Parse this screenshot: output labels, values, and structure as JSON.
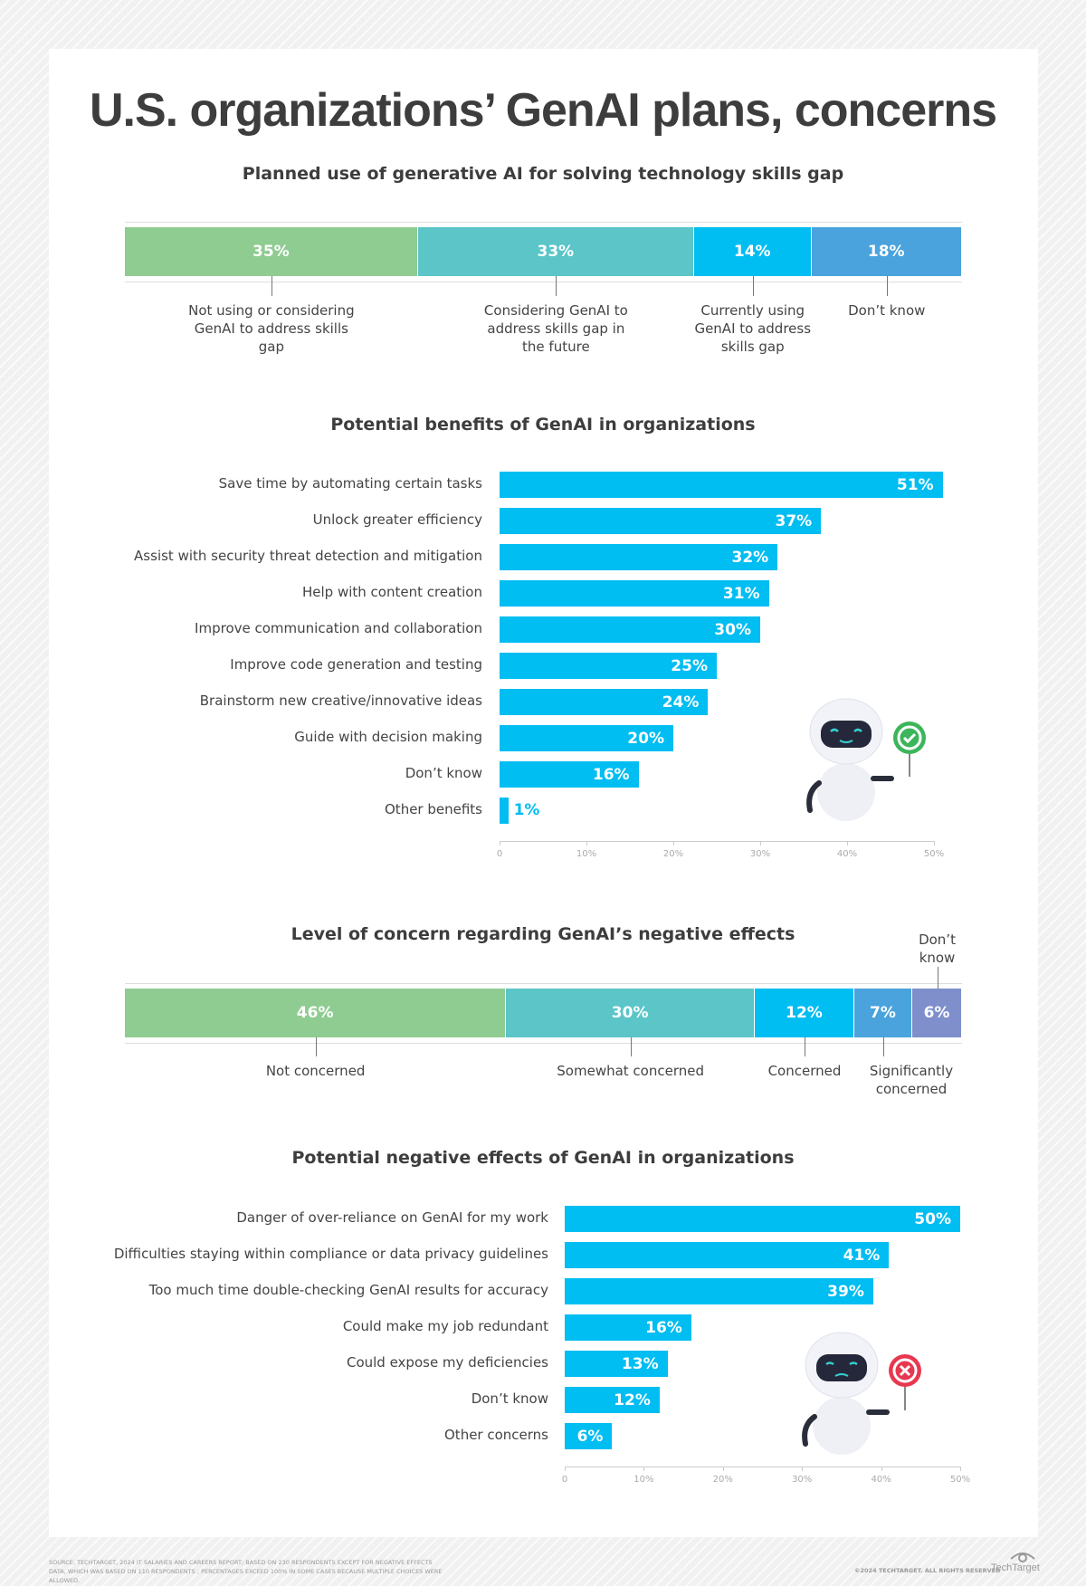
{
  "title": "U.S. organizations’ GenAI plans, concerns",
  "chart_data": [
    {
      "type": "bar",
      "stacked": true,
      "title": "Planned use of generative AI for solving technology skills gap",
      "categories": [
        "Not using or considering GenAI to address skills gap",
        "Considering GenAI to address skills gap in the future",
        "Currently using GenAI to address skills gap",
        "Don’t know"
      ],
      "values": [
        35,
        33,
        14,
        18
      ],
      "labels": [
        "35%",
        "33%",
        "14%",
        "18%"
      ],
      "colors": [
        "#8fcc91",
        "#5bc5c8",
        "#00bdf2",
        "#4aa3dc"
      ]
    },
    {
      "type": "bar",
      "orientation": "horizontal",
      "title": "Potential benefits of GenAI in organizations",
      "categories": [
        "Save time by automating certain tasks",
        "Unlock greater efficiency",
        "Assist with security threat detection and mitigation",
        "Help with content creation",
        "Improve communication and collaboration",
        "Improve code generation and testing",
        "Brainstorm new creative/innovative ideas",
        "Guide with decision making",
        "Don’t know",
        "Other benefits"
      ],
      "values": [
        51,
        37,
        32,
        31,
        30,
        25,
        24,
        20,
        16,
        1
      ],
      "labels": [
        "51%",
        "37%",
        "32%",
        "31%",
        "30%",
        "25%",
        "24%",
        "20%",
        "16%",
        "1%"
      ],
      "xlim": [
        0,
        50
      ],
      "xticks": [
        "0",
        "10%",
        "20%",
        "30%",
        "40%",
        "50%"
      ],
      "color": "#00bdf2"
    },
    {
      "type": "bar",
      "stacked": true,
      "title": "Level of concern regarding GenAI’s negative effects",
      "categories": [
        "Not concerned",
        "Somewhat concerned",
        "Concerned",
        "Significantly concerned",
        "Don’t know"
      ],
      "values": [
        46,
        30,
        12,
        7,
        6
      ],
      "labels": [
        "46%",
        "30%",
        "12%",
        "7%",
        "6%"
      ],
      "colors": [
        "#8fcc91",
        "#5bc5c8",
        "#00bdf2",
        "#4aa3dc",
        "#7f8fcc"
      ]
    },
    {
      "type": "bar",
      "orientation": "horizontal",
      "title": "Potential negative effects of GenAI in organizations",
      "categories": [
        "Danger of over-reliance on GenAI for my work",
        "Difficulties staying within compliance or data privacy guidelines",
        "Too much time double-checking GenAI results for accuracy",
        "Could make my job redundant",
        "Could expose my deficiencies",
        "Don’t know",
        "Other concerns"
      ],
      "values": [
        50,
        41,
        39,
        16,
        13,
        12,
        6
      ],
      "labels": [
        "50%",
        "41%",
        "39%",
        "16%",
        "13%",
        "12%",
        "6%"
      ],
      "xlim": [
        0,
        50
      ],
      "xticks": [
        "0",
        "10%",
        "20%",
        "30%",
        "40%",
        "50%"
      ],
      "color": "#00bdf2"
    }
  ],
  "footer": {
    "source": "SOURCE: TECHTARGET, 2024 IT SALARIES AND CAREERS REPORT; BASED ON 230 RESPONDENTS EXCEPT FOR NEGATIVE EFFECTS DATA, WHICH WAS BASED ON 110 RESPONDENTS ; PERCENTAGES EXCEED 100% IN SOME CASES BECAUSE MULTIPLE CHOICES WERE ALLOWED.",
    "copyright": "©2024 TECHTARGET. ALL RIGHTS RESERVED",
    "logo": "TechTarget"
  },
  "icons": {
    "robot1_badge": "check-circle-icon",
    "robot2_badge": "x-circle-icon",
    "logo": "eye-icon"
  }
}
